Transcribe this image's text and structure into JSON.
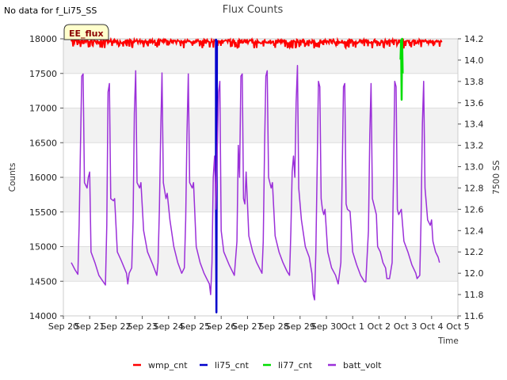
{
  "page": {
    "no_data_message": "No data for f_Li75_SS"
  },
  "chart_data": {
    "type": "line",
    "title": "Flux Counts",
    "badge": "EE_flux",
    "xlabel": "Time",
    "ylabel_left": "Counts",
    "ylabel_right": "7500 SS",
    "x_tick_labels": [
      "Sep 20",
      "Sep 21",
      "Sep 22",
      "Sep 23",
      "Sep 24",
      "Sep 25",
      "Sep 26",
      "Sep 27",
      "Sep 28",
      "Sep 29",
      "Sep 30",
      "Oct 1",
      "Oct 2",
      "Oct 3",
      "Oct 4",
      "Oct 5"
    ],
    "x_range_days": [
      0,
      15
    ],
    "y_left": {
      "lim": [
        14000,
        18000
      ],
      "ticks": [
        14000,
        14500,
        15000,
        15500,
        16000,
        16500,
        17000,
        17500,
        18000
      ]
    },
    "y_right": {
      "lim": [
        11.6,
        14.2
      ],
      "ticks": [
        "11.6",
        "11.8",
        "12.0",
        "12.2",
        "12.4",
        "12.6",
        "12.8",
        "13.0",
        "13.2",
        "13.4",
        "13.6",
        "13.8",
        "14.0",
        "14.2"
      ]
    },
    "legend_position": "bottom-center",
    "series": [
      {
        "name": "wmp_cnt",
        "color": "#ff0000",
        "axis": "left",
        "style": "noisy-band",
        "x_range": [
          0.3,
          14.4
        ],
        "y_low": 17860,
        "y_high": 17990
      },
      {
        "name": "li75_cnt",
        "color": "#0000cc",
        "axis": "left",
        "style": "spike",
        "points": [
          [
            5.8,
            18000
          ],
          [
            5.8,
            15800
          ],
          [
            5.82,
            14050
          ],
          [
            5.84,
            17980
          ]
        ]
      },
      {
        "name": "li77_cnt",
        "color": "#00dd00",
        "axis": "left",
        "style": "spike",
        "points": [
          [
            12.82,
            17700
          ],
          [
            12.84,
            17980
          ],
          [
            12.86,
            17120
          ],
          [
            12.88,
            18000
          ],
          [
            12.9,
            17500
          ]
        ]
      },
      {
        "name": "batt_volt",
        "color": "#9b30d9",
        "axis": "right",
        "style": "line",
        "points": [
          [
            0.3,
            12.1
          ],
          [
            0.45,
            12.03
          ],
          [
            0.55,
            11.99
          ],
          [
            0.6,
            12.45
          ],
          [
            0.65,
            13.2
          ],
          [
            0.7,
            13.85
          ],
          [
            0.75,
            13.87
          ],
          [
            0.8,
            12.85
          ],
          [
            0.9,
            12.8
          ],
          [
            0.95,
            12.9
          ],
          [
            1.0,
            12.95
          ],
          [
            1.05,
            12.2
          ],
          [
            1.2,
            12.1
          ],
          [
            1.35,
            11.98
          ],
          [
            1.6,
            11.89
          ],
          [
            1.65,
            12.45
          ],
          [
            1.7,
            13.7
          ],
          [
            1.75,
            13.78
          ],
          [
            1.8,
            12.7
          ],
          [
            1.9,
            12.68
          ],
          [
            1.95,
            12.7
          ],
          [
            2.05,
            12.2
          ],
          [
            2.2,
            12.12
          ],
          [
            2.4,
            12.0
          ],
          [
            2.45,
            11.9
          ],
          [
            2.5,
            12.0
          ],
          [
            2.6,
            12.05
          ],
          [
            2.65,
            12.5
          ],
          [
            2.7,
            13.5
          ],
          [
            2.75,
            13.9
          ],
          [
            2.8,
            12.85
          ],
          [
            2.9,
            12.8
          ],
          [
            2.95,
            12.85
          ],
          [
            3.05,
            12.4
          ],
          [
            3.2,
            12.2
          ],
          [
            3.4,
            12.08
          ],
          [
            3.55,
            11.98
          ],
          [
            3.6,
            12.1
          ],
          [
            3.65,
            12.6
          ],
          [
            3.7,
            13.3
          ],
          [
            3.75,
            13.88
          ],
          [
            3.8,
            12.85
          ],
          [
            3.9,
            12.7
          ],
          [
            3.95,
            12.75
          ],
          [
            4.05,
            12.5
          ],
          [
            4.2,
            12.25
          ],
          [
            4.35,
            12.1
          ],
          [
            4.5,
            12.0
          ],
          [
            4.6,
            12.05
          ],
          [
            4.65,
            12.5
          ],
          [
            4.7,
            13.3
          ],
          [
            4.75,
            13.87
          ],
          [
            4.8,
            12.85
          ],
          [
            4.9,
            12.8
          ],
          [
            4.95,
            12.85
          ],
          [
            5.05,
            12.25
          ],
          [
            5.2,
            12.1
          ],
          [
            5.35,
            12.0
          ],
          [
            5.45,
            11.95
          ],
          [
            5.55,
            11.9
          ],
          [
            5.6,
            11.8
          ],
          [
            5.65,
            12.1
          ],
          [
            5.7,
            12.9
          ],
          [
            5.75,
            13.1
          ],
          [
            5.8,
            12.6
          ],
          [
            5.9,
            13.7
          ],
          [
            5.95,
            13.8
          ],
          [
            6.0,
            12.4
          ],
          [
            6.1,
            12.2
          ],
          [
            6.3,
            12.08
          ],
          [
            6.5,
            11.98
          ],
          [
            6.6,
            12.3
          ],
          [
            6.65,
            13.2
          ],
          [
            6.7,
            12.9
          ],
          [
            6.75,
            13.85
          ],
          [
            6.8,
            13.87
          ],
          [
            6.85,
            12.7
          ],
          [
            6.9,
            12.65
          ],
          [
            6.95,
            12.95
          ],
          [
            7.05,
            12.35
          ],
          [
            7.2,
            12.2
          ],
          [
            7.35,
            12.1
          ],
          [
            7.55,
            12.0
          ],
          [
            7.6,
            12.3
          ],
          [
            7.65,
            13.2
          ],
          [
            7.7,
            13.85
          ],
          [
            7.75,
            13.9
          ],
          [
            7.8,
            12.9
          ],
          [
            7.9,
            12.8
          ],
          [
            7.95,
            12.85
          ],
          [
            8.05,
            12.35
          ],
          [
            8.2,
            12.2
          ],
          [
            8.35,
            12.1
          ],
          [
            8.5,
            12.02
          ],
          [
            8.6,
            11.98
          ],
          [
            8.65,
            12.4
          ],
          [
            8.7,
            12.95
          ],
          [
            8.75,
            13.1
          ],
          [
            8.8,
            12.9
          ],
          [
            8.85,
            13.6
          ],
          [
            8.9,
            13.95
          ],
          [
            8.95,
            12.8
          ],
          [
            9.05,
            12.5
          ],
          [
            9.2,
            12.25
          ],
          [
            9.35,
            12.15
          ],
          [
            9.45,
            12.0
          ],
          [
            9.5,
            11.8
          ],
          [
            9.55,
            11.75
          ],
          [
            9.6,
            12.2
          ],
          [
            9.65,
            13.0
          ],
          [
            9.7,
            13.8
          ],
          [
            9.75,
            13.75
          ],
          [
            9.8,
            12.7
          ],
          [
            9.85,
            12.6
          ],
          [
            9.9,
            12.55
          ],
          [
            9.95,
            12.6
          ],
          [
            10.05,
            12.2
          ],
          [
            10.2,
            12.05
          ],
          [
            10.35,
            11.98
          ],
          [
            10.45,
            11.9
          ],
          [
            10.55,
            12.1
          ],
          [
            10.6,
            12.9
          ],
          [
            10.65,
            13.75
          ],
          [
            10.7,
            13.78
          ],
          [
            10.75,
            12.65
          ],
          [
            10.8,
            12.6
          ],
          [
            10.9,
            12.58
          ],
          [
            11.0,
            12.2
          ],
          [
            11.15,
            12.08
          ],
          [
            11.3,
            11.98
          ],
          [
            11.45,
            11.92
          ],
          [
            11.5,
            11.92
          ],
          [
            11.6,
            12.4
          ],
          [
            11.65,
            13.3
          ],
          [
            11.7,
            13.78
          ],
          [
            11.75,
            12.7
          ],
          [
            11.8,
            12.65
          ],
          [
            11.9,
            12.55
          ],
          [
            11.95,
            12.25
          ],
          [
            12.05,
            12.2
          ],
          [
            12.15,
            12.1
          ],
          [
            12.25,
            12.05
          ],
          [
            12.3,
            11.95
          ],
          [
            12.4,
            11.95
          ],
          [
            12.5,
            12.1
          ],
          [
            12.55,
            12.9
          ],
          [
            12.6,
            13.8
          ],
          [
            12.65,
            13.75
          ],
          [
            12.7,
            12.6
          ],
          [
            12.75,
            12.55
          ],
          [
            12.85,
            12.6
          ],
          [
            12.95,
            12.3
          ],
          [
            13.1,
            12.2
          ],
          [
            13.25,
            12.08
          ],
          [
            13.4,
            12.0
          ],
          [
            13.45,
            11.95
          ],
          [
            13.55,
            11.98
          ],
          [
            13.6,
            12.5
          ],
          [
            13.65,
            13.4
          ],
          [
            13.7,
            13.8
          ],
          [
            13.75,
            12.8
          ],
          [
            13.8,
            12.65
          ],
          [
            13.85,
            12.5
          ],
          [
            13.95,
            12.45
          ],
          [
            14.0,
            12.5
          ],
          [
            14.05,
            12.3
          ],
          [
            14.15,
            12.2
          ],
          [
            14.25,
            12.15
          ],
          [
            14.3,
            12.1
          ]
        ]
      }
    ]
  }
}
